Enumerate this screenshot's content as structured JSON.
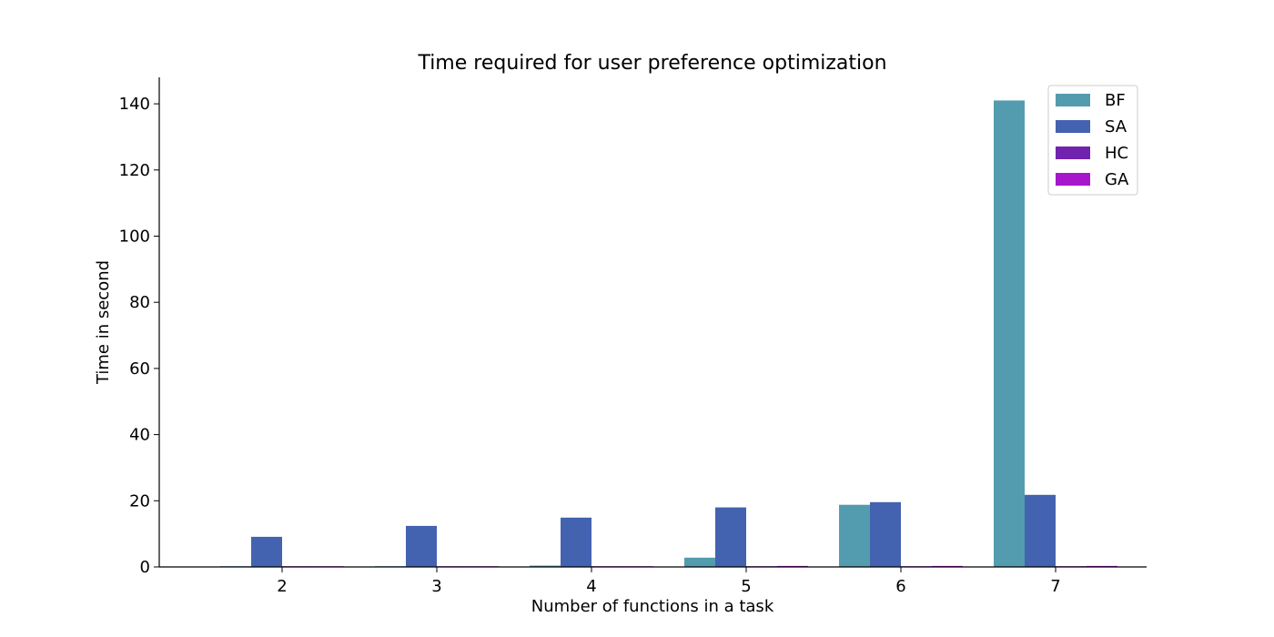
{
  "chart_data": {
    "type": "bar",
    "title": "Time required for user preference optimization",
    "xlabel": "Number of functions in a task",
    "ylabel": "Time in second",
    "categories": [
      "2",
      "3",
      "4",
      "5",
      "6",
      "7"
    ],
    "ylim": [
      0,
      148
    ],
    "yticks": [
      0,
      20,
      40,
      60,
      80,
      100,
      120,
      140
    ],
    "grid": false,
    "legend_position": "top-right",
    "series": [
      {
        "name": "BF",
        "color": "#539caf",
        "values": [
          0.02,
          0.05,
          0.4,
          2.8,
          18.8,
          141
        ]
      },
      {
        "name": "SA",
        "color": "#4363b0",
        "values": [
          9.1,
          12.4,
          14.9,
          18.0,
          19.6,
          21.8
        ]
      },
      {
        "name": "HC",
        "color": "#7223ae",
        "values": [
          0.01,
          0.01,
          0.02,
          0.03,
          0.04,
          0.05
        ]
      },
      {
        "name": "GA",
        "color": "#a816cb",
        "values": [
          0.02,
          0.03,
          0.05,
          0.3,
          0.3,
          0.3
        ]
      }
    ]
  }
}
